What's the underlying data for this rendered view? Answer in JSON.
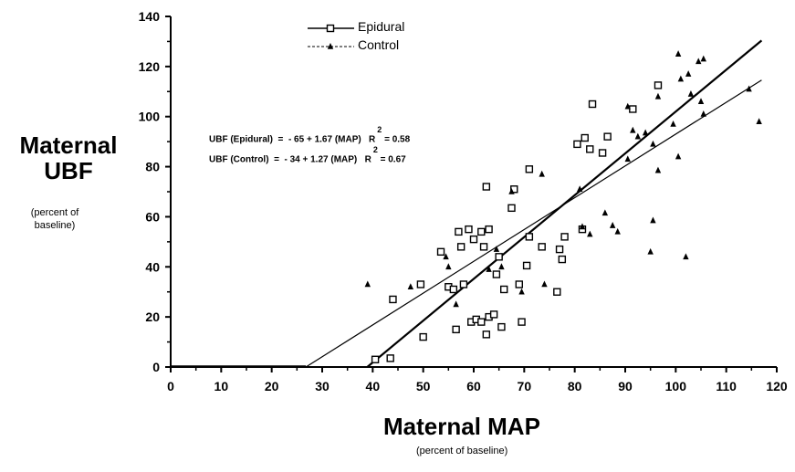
{
  "chart_data": {
    "type": "scatter",
    "ylabel": "Maternal UBF",
    "ylabel_unit": "(percent of baseline)",
    "xlabel": "Maternal MAP",
    "xlabel_unit": "(percent of baseline)",
    "xlim": [
      0,
      120
    ],
    "ylim": [
      0,
      140
    ],
    "xticks": [
      0,
      10,
      20,
      30,
      40,
      50,
      60,
      70,
      80,
      90,
      100,
      110,
      120
    ],
    "yticks": [
      0,
      20,
      40,
      60,
      80,
      100,
      120,
      140
    ],
    "grid": false,
    "legend_placement": "top-center",
    "series": [
      {
        "name": "Epidural",
        "marker": "open-square",
        "points": [
          [
            40.5,
            3
          ],
          [
            43.5,
            3.5
          ],
          [
            44,
            27
          ],
          [
            49.5,
            33
          ],
          [
            50,
            12
          ],
          [
            53.5,
            46
          ],
          [
            55,
            32
          ],
          [
            56,
            31
          ],
          [
            57,
            54
          ],
          [
            56.5,
            15
          ],
          [
            57.5,
            48
          ],
          [
            58,
            33
          ],
          [
            59,
            55
          ],
          [
            59.5,
            18
          ],
          [
            60.5,
            19
          ],
          [
            60,
            51
          ],
          [
            61.5,
            54
          ],
          [
            61.5,
            18
          ],
          [
            62,
            48
          ],
          [
            62.5,
            72
          ],
          [
            62.5,
            13
          ],
          [
            63,
            55
          ],
          [
            63,
            20
          ],
          [
            64,
            21
          ],
          [
            64.5,
            37
          ],
          [
            65,
            44
          ],
          [
            65.5,
            16
          ],
          [
            66,
            31
          ],
          [
            67.5,
            63.5
          ],
          [
            68,
            71
          ],
          [
            69,
            33
          ],
          [
            69.5,
            18
          ],
          [
            70.5,
            40.5
          ],
          [
            71,
            79
          ],
          [
            71,
            52
          ],
          [
            73.5,
            48
          ],
          [
            76.5,
            30
          ],
          [
            77,
            47
          ],
          [
            77.5,
            43
          ],
          [
            78,
            52
          ],
          [
            80.5,
            89
          ],
          [
            81.5,
            55
          ],
          [
            82,
            91.5
          ],
          [
            83,
            87
          ],
          [
            83.5,
            105
          ],
          [
            85.5,
            85.5
          ],
          [
            86.5,
            92
          ],
          [
            91.5,
            103
          ],
          [
            96.5,
            112.5
          ]
        ],
        "fit": {
          "equation": "UBF (Epidural)  =  - 65 + 1.67 (MAP)",
          "r2_label": "R",
          "r2_sup": "2",
          "r2": "= 0.58",
          "intercept": -65,
          "slope": 1.67
        }
      },
      {
        "name": "Control",
        "marker": "filled-triangle",
        "points": [
          [
            39,
            33
          ],
          [
            47.5,
            32
          ],
          [
            54.5,
            44
          ],
          [
            55,
            40
          ],
          [
            56.5,
            25
          ],
          [
            63,
            39
          ],
          [
            64.5,
            47
          ],
          [
            65.5,
            40
          ],
          [
            67.5,
            70
          ],
          [
            69.5,
            30
          ],
          [
            73.5,
            77
          ],
          [
            74,
            33
          ],
          [
            81,
            71
          ],
          [
            81.5,
            56
          ],
          [
            83,
            53
          ],
          [
            86,
            61.5
          ],
          [
            87.5,
            56.5
          ],
          [
            88.5,
            54
          ],
          [
            90.5,
            83
          ],
          [
            90.5,
            104
          ],
          [
            91.5,
            94.5
          ],
          [
            92.5,
            92
          ],
          [
            94,
            93.5
          ],
          [
            95,
            46
          ],
          [
            95.5,
            89
          ],
          [
            95.5,
            58.5
          ],
          [
            96.5,
            78.5
          ],
          [
            96.5,
            108
          ],
          [
            99.5,
            97
          ],
          [
            100.5,
            125
          ],
          [
            100.5,
            84
          ],
          [
            101,
            115
          ],
          [
            102,
            44
          ],
          [
            102.5,
            117
          ],
          [
            103,
            109
          ],
          [
            104.5,
            122
          ],
          [
            105,
            106
          ],
          [
            105.5,
            123
          ],
          [
            105.5,
            101
          ],
          [
            114.5,
            111
          ],
          [
            116.5,
            98
          ]
        ],
        "fit": {
          "equation": "UBF (Control)  =  - 34 + 1.27 (MAP)",
          "r2_label": "R",
          "r2_sup": "2",
          "r2": "= 0.67",
          "intercept": -34,
          "slope": 1.27
        }
      }
    ]
  },
  "labels": {
    "ytitle_line1": "Maternal",
    "ytitle_line2": "UBF",
    "yunit_line1": "(percent of",
    "yunit_line2": "baseline)",
    "xtitle": "Maternal MAP",
    "xunit": "(percent of baseline)",
    "legend_epidural": "Epidural",
    "legend_control": "Control"
  },
  "colors": {
    "ink": "#000000",
    "background": "#ffffff"
  }
}
